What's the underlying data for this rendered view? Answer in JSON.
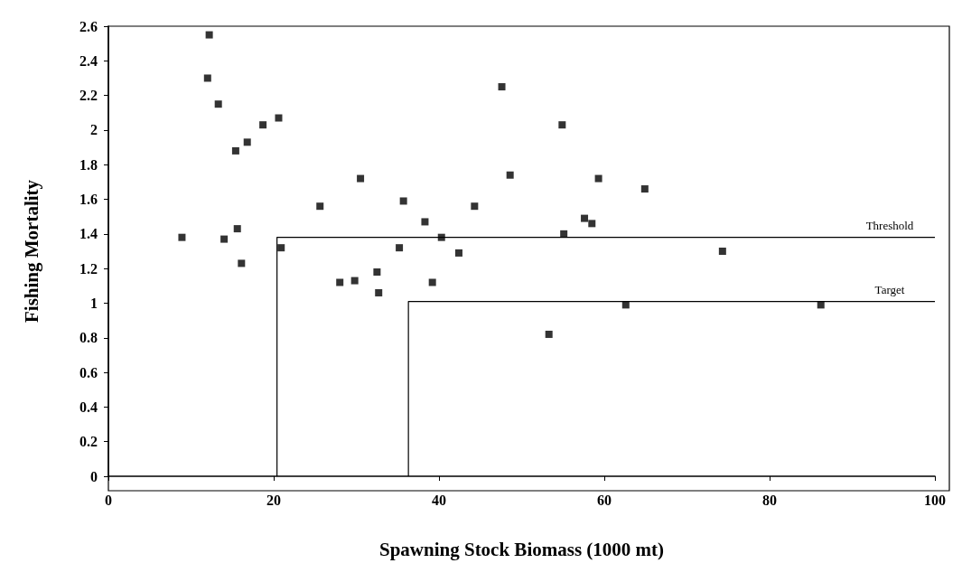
{
  "chart_data": {
    "type": "scatter",
    "xlabel": "Spawning Stock Biomass (1000 mt)",
    "ylabel": "Fishing Mortality",
    "xlim": [
      0,
      100
    ],
    "xticks": [
      0,
      20,
      40,
      60,
      80,
      100
    ],
    "ylim": [
      0,
      2.6
    ],
    "yticks": [
      0,
      0.2,
      0.4,
      0.6,
      0.8,
      1,
      1.2,
      1.4,
      1.6,
      1.8,
      2,
      2.2,
      2.4,
      2.6
    ],
    "grid": false,
    "legend": false,
    "marker": "square",
    "series": [
      {
        "color": "#000000",
        "x": [
          12.2,
          12.0,
          13.3,
          18.7,
          20.6,
          16.8,
          15.4,
          8.9,
          14.0,
          15.6,
          16.1,
          20.9,
          25.6,
          30.5,
          35.7,
          35.2,
          38.3,
          40.3,
          42.4,
          28.0,
          29.8,
          32.5,
          32.7,
          39.2,
          47.6,
          54.9,
          48.6,
          59.3,
          64.9,
          57.6,
          58.5,
          55.1,
          74.3,
          44.3,
          53.3,
          62.6,
          86.2
        ],
        "values": [
          2.55,
          2.3,
          2.15,
          2.03,
          2.07,
          1.93,
          1.88,
          1.38,
          1.37,
          1.43,
          1.23,
          1.32,
          1.56,
          1.72,
          1.59,
          1.32,
          1.47,
          1.38,
          1.29,
          1.12,
          1.13,
          1.18,
          1.06,
          1.12,
          2.25,
          2.03,
          1.74,
          1.72,
          1.66,
          1.49,
          1.46,
          1.4,
          1.3,
          1.56,
          0.82,
          0.99,
          0.99
        ]
      },
      {
        "type": "line",
        "name": "Threshold",
        "color": "#000000",
        "marker": "none",
        "line_style": "solid",
        "x": [
          20.4,
          20.4,
          100
        ],
        "values": [
          0,
          1.38,
          1.38
        ]
      },
      {
        "type": "line",
        "name": "Target",
        "color": "#000000",
        "marker": "none",
        "line_style": "solid",
        "x": [
          36.3,
          36.3,
          100
        ],
        "values": [
          0,
          1.01,
          1.01
        ]
      }
    ]
  }
}
